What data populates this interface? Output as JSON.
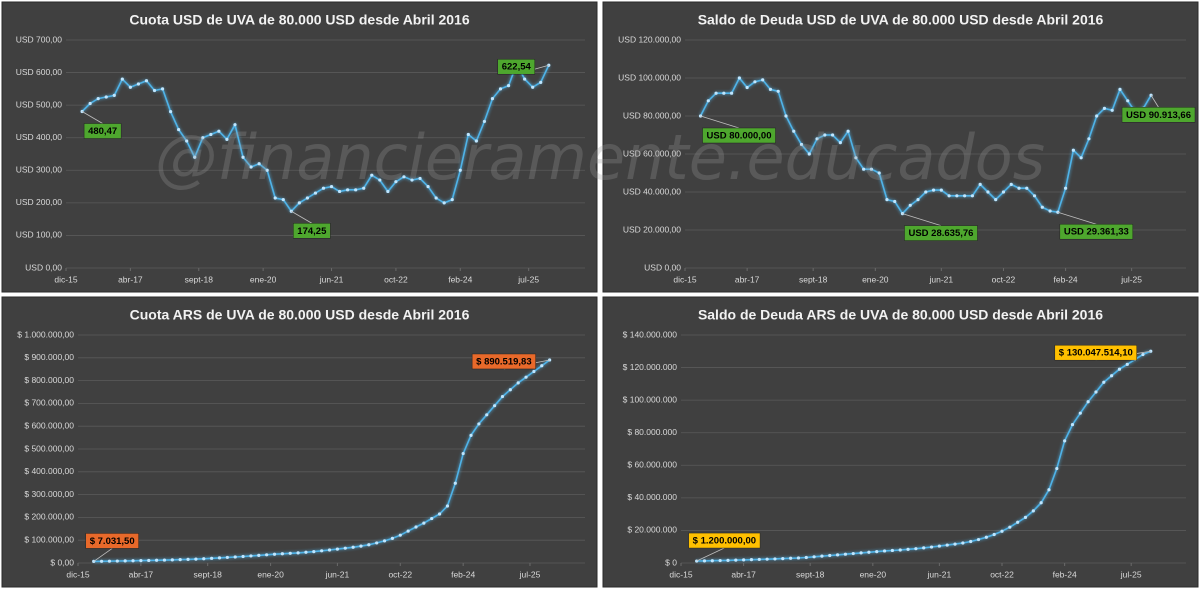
{
  "watermark": "@financieramente.educados",
  "chart_data": [
    {
      "type": "line",
      "title": "Cuota USD de UVA de 80.000 USD desde Abril 2016",
      "color": "#4fb3e8",
      "x": [
        "2016-04",
        "2016-06",
        "2016-08",
        "2016-10",
        "2016-12",
        "2017-02",
        "2017-04",
        "2017-06",
        "2017-08",
        "2017-10",
        "2017-12",
        "2018-02",
        "2018-04",
        "2018-06",
        "2018-08",
        "2018-10",
        "2018-12",
        "2019-02",
        "2019-04",
        "2019-06",
        "2019-08",
        "2019-10",
        "2019-12",
        "2020-02",
        "2020-04",
        "2020-06",
        "2020-08",
        "2020-10",
        "2020-12",
        "2021-02",
        "2021-04",
        "2021-06",
        "2021-08",
        "2021-10",
        "2021-12",
        "2022-02",
        "2022-04",
        "2022-06",
        "2022-08",
        "2022-10",
        "2022-12",
        "2023-02",
        "2023-04",
        "2023-06",
        "2023-08",
        "2023-10",
        "2023-12",
        "2024-02",
        "2024-04",
        "2024-06",
        "2024-08",
        "2024-10",
        "2024-12",
        "2025-02",
        "2025-04",
        "2025-06",
        "2025-08",
        "2025-10",
        "2025-12"
      ],
      "values": [
        480.47,
        505,
        520,
        525,
        530,
        580,
        555,
        565,
        575,
        545,
        550,
        480,
        425,
        390,
        340,
        400,
        410,
        420,
        395,
        440,
        340,
        310,
        320,
        300,
        215,
        210,
        174.25,
        200,
        215,
        230,
        245,
        250,
        235,
        240,
        240,
        245,
        285,
        270,
        235,
        265,
        280,
        270,
        275,
        250,
        215,
        200,
        210,
        300,
        410,
        390,
        450,
        520,
        550,
        560,
        625,
        580,
        555,
        570,
        622.54
      ],
      "xlim": [
        "2015-12",
        "2026-09"
      ],
      "xticks": [
        {
          "value": "2015-12",
          "label": "dic-15"
        },
        {
          "value": "2017-04",
          "label": "abr-17"
        },
        {
          "value": "2018-09",
          "label": "sept-18"
        },
        {
          "value": "2020-01",
          "label": "ene-20"
        },
        {
          "value": "2021-06",
          "label": "jun-21"
        },
        {
          "value": "2022-10",
          "label": "oct-22"
        },
        {
          "value": "2024-02",
          "label": "feb-24"
        },
        {
          "value": "2025-07",
          "label": "jul-25"
        }
      ],
      "ylim": [
        0,
        700
      ],
      "yticks": [
        {
          "value": 0,
          "label": "USD 0,00"
        },
        {
          "value": 100,
          "label": "USD 100,00"
        },
        {
          "value": 200,
          "label": "USD 200,00"
        },
        {
          "value": 300,
          "label": "USD 300,00"
        },
        {
          "value": 400,
          "label": "USD 400,00"
        },
        {
          "value": 500,
          "label": "USD 500,00"
        },
        {
          "value": 600,
          "label": "USD 600,00"
        },
        {
          "value": 700,
          "label": "USD 700,00"
        }
      ],
      "grid": true,
      "annotation_color": "#4ea72e",
      "annotations": [
        {
          "x": "2016-04",
          "y": 480.47,
          "label": "480,47"
        },
        {
          "x": "2020-08",
          "y": 174.25,
          "label": "174,25"
        },
        {
          "x": "2025-12",
          "y": 622.54,
          "label": "622,54"
        }
      ]
    },
    {
      "type": "line",
      "title": "Saldo de Deuda USD de UVA de 80.000 USD desde Abril 2016",
      "color": "#4fb3e8",
      "x": [
        "2016-04",
        "2016-06",
        "2016-08",
        "2016-10",
        "2016-12",
        "2017-02",
        "2017-04",
        "2017-06",
        "2017-08",
        "2017-10",
        "2017-12",
        "2018-02",
        "2018-04",
        "2018-06",
        "2018-08",
        "2018-10",
        "2018-12",
        "2019-02",
        "2019-04",
        "2019-06",
        "2019-08",
        "2019-10",
        "2019-12",
        "2020-02",
        "2020-04",
        "2020-06",
        "2020-08",
        "2020-10",
        "2020-12",
        "2021-02",
        "2021-04",
        "2021-06",
        "2021-08",
        "2021-10",
        "2021-12",
        "2022-02",
        "2022-04",
        "2022-06",
        "2022-08",
        "2022-10",
        "2022-12",
        "2023-02",
        "2023-04",
        "2023-06",
        "2023-08",
        "2023-10",
        "2023-12",
        "2024-02",
        "2024-04",
        "2024-06",
        "2024-08",
        "2024-10",
        "2024-12",
        "2025-02",
        "2025-04",
        "2025-06",
        "2025-08",
        "2025-10",
        "2025-12"
      ],
      "values": [
        80000,
        88000,
        92000,
        92000,
        92000,
        100000,
        95000,
        98000,
        99000,
        94000,
        93000,
        80000,
        72000,
        65000,
        60000,
        68000,
        70000,
        70000,
        66000,
        72000,
        58000,
        52000,
        52000,
        50000,
        36000,
        35000,
        28635.76,
        33000,
        36000,
        40000,
        41000,
        41000,
        38000,
        38000,
        38000,
        38000,
        44000,
        40000,
        36000,
        40000,
        44000,
        42000,
        42000,
        38000,
        32000,
        30000,
        29361.33,
        42000,
        62000,
        58000,
        68000,
        80000,
        84000,
        83000,
        94000,
        88000,
        82000,
        84000,
        90913.66
      ],
      "xlim": [
        "2015-12",
        "2026-09"
      ],
      "xticks": [
        {
          "value": "2015-12",
          "label": "dic-15"
        },
        {
          "value": "2017-04",
          "label": "abr-17"
        },
        {
          "value": "2018-09",
          "label": "sept-18"
        },
        {
          "value": "2020-01",
          "label": "ene-20"
        },
        {
          "value": "2021-06",
          "label": "jun-21"
        },
        {
          "value": "2022-10",
          "label": "oct-22"
        },
        {
          "value": "2024-02",
          "label": "feb-24"
        },
        {
          "value": "2025-07",
          "label": "jul-25"
        }
      ],
      "ylim": [
        0,
        120000
      ],
      "yticks": [
        {
          "value": 0,
          "label": "USD 0,00"
        },
        {
          "value": 20000,
          "label": "USD 20.000,00"
        },
        {
          "value": 40000,
          "label": "USD 40.000,00"
        },
        {
          "value": 60000,
          "label": "USD 60.000,00"
        },
        {
          "value": 80000,
          "label": "USD 80.000,00"
        },
        {
          "value": 100000,
          "label": "USD 100.000,00"
        },
        {
          "value": 120000,
          "label": "USD 120.000,00"
        }
      ],
      "grid": true,
      "annotation_color": "#4ea72e",
      "annotations": [
        {
          "x": "2016-04",
          "y": 80000,
          "label": "USD 80.000,00"
        },
        {
          "x": "2020-08",
          "y": 28635.76,
          "label": "USD 28.635,76"
        },
        {
          "x": "2023-12",
          "y": 29361.33,
          "label": "USD 29.361,33"
        },
        {
          "x": "2025-12",
          "y": 90913.66,
          "label": "USD 90.913,66"
        }
      ]
    },
    {
      "type": "line",
      "title": "Cuota ARS de UVA de 80.000 USD desde Abril 2016",
      "color": "#4fb3e8",
      "x": [
        "2016-04",
        "2016-06",
        "2016-08",
        "2016-10",
        "2016-12",
        "2017-02",
        "2017-04",
        "2017-06",
        "2017-08",
        "2017-10",
        "2017-12",
        "2018-02",
        "2018-04",
        "2018-06",
        "2018-08",
        "2018-10",
        "2018-12",
        "2019-02",
        "2019-04",
        "2019-06",
        "2019-08",
        "2019-10",
        "2019-12",
        "2020-02",
        "2020-04",
        "2020-06",
        "2020-08",
        "2020-10",
        "2020-12",
        "2021-02",
        "2021-04",
        "2021-06",
        "2021-08",
        "2021-10",
        "2021-12",
        "2022-02",
        "2022-04",
        "2022-06",
        "2022-08",
        "2022-10",
        "2022-12",
        "2023-02",
        "2023-04",
        "2023-06",
        "2023-08",
        "2023-10",
        "2023-12",
        "2024-02",
        "2024-04",
        "2024-06",
        "2024-08",
        "2024-10",
        "2024-12",
        "2025-02",
        "2025-04",
        "2025-06",
        "2025-08",
        "2025-10",
        "2025-12"
      ],
      "values": [
        7031.5,
        7500,
        8000,
        8600,
        9200,
        9800,
        10500,
        11200,
        12000,
        12800,
        13700,
        14700,
        15800,
        17000,
        18500,
        20500,
        22500,
        24500,
        26500,
        28500,
        31000,
        33500,
        36000,
        38500,
        40500,
        42500,
        44500,
        47000,
        50000,
        53500,
        57000,
        61000,
        65000,
        69000,
        74000,
        80000,
        88000,
        97000,
        108000,
        122000,
        140000,
        158000,
        175000,
        195000,
        215000,
        250000,
        350000,
        480000,
        560000,
        610000,
        650000,
        690000,
        730000,
        760000,
        790000,
        815000,
        840000,
        865000,
        890519.83
      ],
      "xlim": [
        "2015-12",
        "2026-09"
      ],
      "xticks": [
        {
          "value": "2015-12",
          "label": "dic-15"
        },
        {
          "value": "2017-04",
          "label": "abr-17"
        },
        {
          "value": "2018-09",
          "label": "sept-18"
        },
        {
          "value": "2020-01",
          "label": "ene-20"
        },
        {
          "value": "2021-06",
          "label": "jun-21"
        },
        {
          "value": "2022-10",
          "label": "oct-22"
        },
        {
          "value": "2024-02",
          "label": "feb-24"
        },
        {
          "value": "2025-07",
          "label": "jul-25"
        }
      ],
      "ylim": [
        0,
        1000000
      ],
      "yticks": [
        {
          "value": 0,
          "label": "$ 0,00"
        },
        {
          "value": 100000,
          "label": "$ 100.000,00"
        },
        {
          "value": 200000,
          "label": "$ 200.000,00"
        },
        {
          "value": 300000,
          "label": "$ 300.000,00"
        },
        {
          "value": 400000,
          "label": "$ 400.000,00"
        },
        {
          "value": 500000,
          "label": "$ 500.000,00"
        },
        {
          "value": 600000,
          "label": "$ 600.000,00"
        },
        {
          "value": 700000,
          "label": "$ 700.000,00"
        },
        {
          "value": 800000,
          "label": "$ 800.000,00"
        },
        {
          "value": 900000,
          "label": "$ 900.000,00"
        },
        {
          "value": 1000000,
          "label": "$ 1.000.000,00"
        }
      ],
      "grid": true,
      "annotation_color": "#e8692a",
      "annotations": [
        {
          "x": "2016-04",
          "y": 7031.5,
          "label": "$ 7.031,50"
        },
        {
          "x": "2025-12",
          "y": 890519.83,
          "label": "$ 890.519,83"
        }
      ]
    },
    {
      "type": "line",
      "title": "Saldo de Deuda ARS de UVA de 80.000 USD desde Abril 2016",
      "color": "#4fb3e8",
      "x": [
        "2016-04",
        "2016-06",
        "2016-08",
        "2016-10",
        "2016-12",
        "2017-02",
        "2017-04",
        "2017-06",
        "2017-08",
        "2017-10",
        "2017-12",
        "2018-02",
        "2018-04",
        "2018-06",
        "2018-08",
        "2018-10",
        "2018-12",
        "2019-02",
        "2019-04",
        "2019-06",
        "2019-08",
        "2019-10",
        "2019-12",
        "2020-02",
        "2020-04",
        "2020-06",
        "2020-08",
        "2020-10",
        "2020-12",
        "2021-02",
        "2021-04",
        "2021-06",
        "2021-08",
        "2021-10",
        "2021-12",
        "2022-02",
        "2022-04",
        "2022-06",
        "2022-08",
        "2022-10",
        "2022-12",
        "2023-02",
        "2023-04",
        "2023-06",
        "2023-08",
        "2023-10",
        "2023-12",
        "2024-02",
        "2024-04",
        "2024-06",
        "2024-08",
        "2024-10",
        "2024-12",
        "2025-02",
        "2025-04",
        "2025-06",
        "2025-08",
        "2025-10",
        "2025-12"
      ],
      "values": [
        1200000,
        1300000,
        1400000,
        1500000,
        1600000,
        1750000,
        1900000,
        2050000,
        2200000,
        2350000,
        2500000,
        2700000,
        2900000,
        3100000,
        3400000,
        3800000,
        4200000,
        4600000,
        5000000,
        5400000,
        5800000,
        6200000,
        6600000,
        7000000,
        7400000,
        7700000,
        8000000,
        8400000,
        8800000,
        9300000,
        9800000,
        10400000,
        11000000,
        11600000,
        12300000,
        13200000,
        14400000,
        15800000,
        17500000,
        19500000,
        22000000,
        25000000,
        28000000,
        32000000,
        37000000,
        45000000,
        58000000,
        75000000,
        85000000,
        92000000,
        99000000,
        105000000,
        111000000,
        115000000,
        119000000,
        122000000,
        125000000,
        128000000,
        130047514.1
      ],
      "xlim": [
        "2015-12",
        "2026-09"
      ],
      "xticks": [
        {
          "value": "2015-12",
          "label": "dic-15"
        },
        {
          "value": "2017-04",
          "label": "abr-17"
        },
        {
          "value": "2018-09",
          "label": "sept-18"
        },
        {
          "value": "2020-01",
          "label": "ene-20"
        },
        {
          "value": "2021-06",
          "label": "jun-21"
        },
        {
          "value": "2022-10",
          "label": "oct-22"
        },
        {
          "value": "2024-02",
          "label": "feb-24"
        },
        {
          "value": "2025-07",
          "label": "jul-25"
        }
      ],
      "ylim": [
        0,
        140000000
      ],
      "yticks": [
        {
          "value": 0,
          "label": "$ 0"
        },
        {
          "value": 20000000,
          "label": "$ 20.000.000"
        },
        {
          "value": 40000000,
          "label": "$ 40.000.000"
        },
        {
          "value": 60000000,
          "label": "$ 60.000.000"
        },
        {
          "value": 80000000,
          "label": "$ 80.000.000"
        },
        {
          "value": 100000000,
          "label": "$ 100.000.000"
        },
        {
          "value": 120000000,
          "label": "$ 120.000.000"
        },
        {
          "value": 140000000,
          "label": "$ 140.000.000"
        }
      ],
      "grid": true,
      "annotation_color": "#ffc000",
      "annotations": [
        {
          "x": "2016-04",
          "y": 1200000,
          "label": "$ 1.200.000,00"
        },
        {
          "x": "2025-12",
          "y": 130047514.1,
          "label": "$ 130.047.514,10"
        }
      ]
    }
  ]
}
